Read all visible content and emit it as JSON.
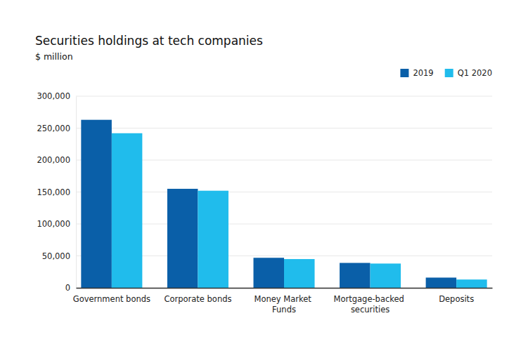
{
  "chart_data": {
    "type": "bar",
    "title": "Securities holdings at tech companies",
    "subtitle": "$ million",
    "categories": [
      "Government bonds",
      "Corporate bonds",
      "Money Market Funds",
      "Mortgage-backed securities",
      "Deposits"
    ],
    "series": [
      {
        "name": "2019",
        "color": "#0a5fa8",
        "values": [
          263000,
          155000,
          47000,
          39000,
          16000
        ]
      },
      {
        "name": "Q1 2020",
        "color": "#20bcec",
        "values": [
          242000,
          152000,
          45000,
          38000,
          13000
        ]
      }
    ],
    "ylim": [
      0,
      300000
    ],
    "yticks": [
      0,
      {
        "value": 50000,
        "label": "50,000"
      },
      {
        "value": 100000,
        "label": "100,000"
      },
      {
        "value": 150000,
        "label": "150,000"
      },
      {
        "value": 200000,
        "label": "200,000"
      },
      {
        "value": 250000,
        "label": "250,000"
      },
      {
        "value": 300000,
        "label": "300,000"
      }
    ],
    "grid": true,
    "legend": "top-right"
  }
}
